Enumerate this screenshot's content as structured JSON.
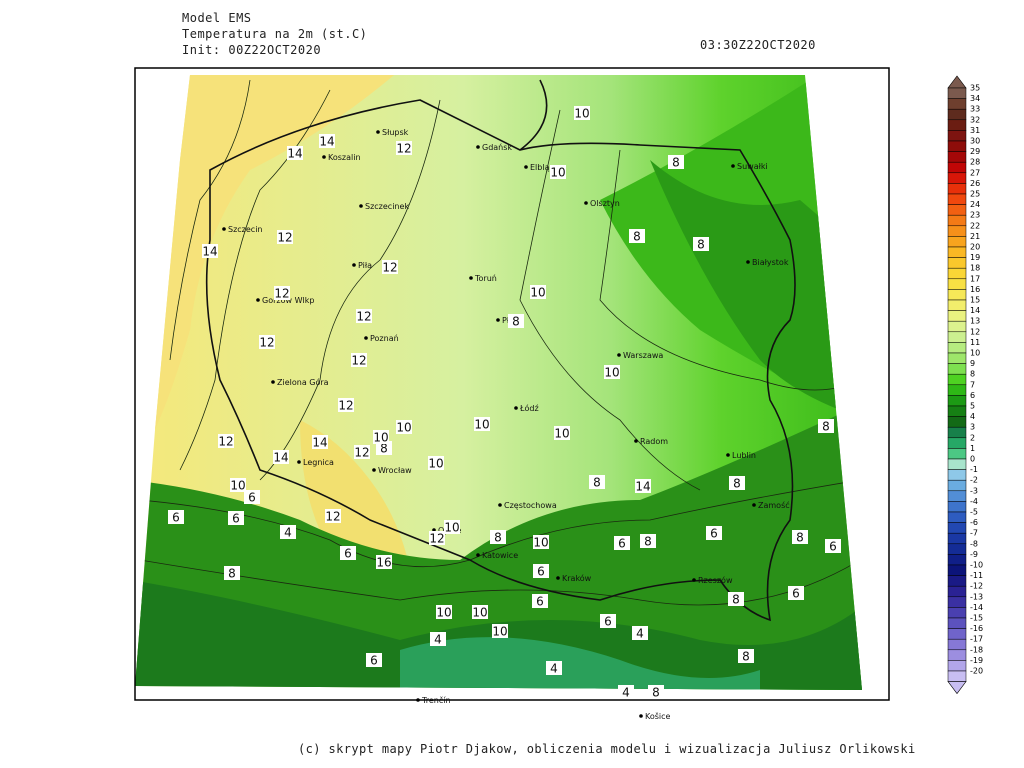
{
  "header": {
    "model": "Model EMS",
    "field": "Temperatura na 2m (st.C)",
    "init": "Init: 00Z22OCT2020",
    "valid": "03:30Z22OCT2020"
  },
  "cities": [
    "Słupsk",
    "Koszalin",
    "Gdańsk",
    "Elbląg",
    "Szczecin",
    "Szczecinek",
    "Olsztyn",
    "Suwałki",
    "Piła",
    "Toruń",
    "Białystok",
    "Gorzów Wlkp",
    "Poznań",
    "Płock",
    "Warszawa",
    "Zielona Góra",
    "Łódź",
    "Radom",
    "Lublin",
    "Legnica",
    "Wrocław",
    "Częstochowa",
    "Zamość",
    "Opole",
    "Katowice",
    "Kraków",
    "Rzeszów",
    "Trenčín",
    "Košice"
  ],
  "contour_labels": [
    14,
    14,
    12,
    12,
    10,
    10,
    8,
    14,
    12,
    12,
    10,
    8,
    8,
    8,
    12,
    12,
    10,
    12,
    12,
    10,
    12,
    10,
    10,
    8,
    14,
    14,
    12,
    10,
    10,
    10,
    8,
    10,
    8,
    6,
    6,
    4,
    12,
    14,
    10,
    12,
    16,
    8,
    6,
    6,
    8,
    6,
    8,
    8,
    6,
    8,
    6,
    6,
    6,
    10,
    10,
    10,
    6,
    4,
    6,
    4,
    4,
    4,
    8,
    10,
    8,
    8,
    6
  ],
  "colorbar": {
    "levels": [
      35,
      34,
      33,
      32,
      31,
      30,
      29,
      28,
      27,
      26,
      25,
      24,
      23,
      22,
      21,
      20,
      19,
      18,
      17,
      16,
      15,
      14,
      13,
      12,
      11,
      10,
      9,
      8,
      7,
      6,
      5,
      4,
      3,
      2,
      1,
      0,
      -1,
      -2,
      -3,
      -4,
      -5,
      -6,
      -7,
      -8,
      -9,
      -10,
      -11,
      -12,
      -13,
      -14,
      -15,
      -16,
      -17,
      -18,
      -19,
      -20
    ],
    "colors": [
      "#7b5a4e",
      "#6e3f2e",
      "#5e2b1e",
      "#6b1d12",
      "#7d1410",
      "#8e0d0a",
      "#a40808",
      "#c00606",
      "#d81608",
      "#e8300a",
      "#f0480e",
      "#f26012",
      "#f47a16",
      "#f6901a",
      "#f8a41e",
      "#fab824",
      "#fac82c",
      "#fad636",
      "#f8e044",
      "#f6e858",
      "#f2ee6c",
      "#eaf280",
      "#dcf28e",
      "#ccf090",
      "#b6ec80",
      "#9ee66a",
      "#7ee050",
      "#4ed222",
      "#2eb816",
      "#1c9a14",
      "#168014",
      "#136a16",
      "#17804a",
      "#26a866",
      "#4cc884",
      "#a8e4cc",
      "#8ec8e8",
      "#6aace0",
      "#528ed6",
      "#3e74cc",
      "#2e5cc0",
      "#2248b2",
      "#1a38a4",
      "#142c96",
      "#101f88",
      "#0c147a",
      "#1a1a86",
      "#2a2294",
      "#3a30a2",
      "#4a40b0",
      "#5c52be",
      "#7064ca",
      "#8678d6",
      "#9c8ee0",
      "#b2a6ea",
      "#c8bef2"
    ]
  },
  "footer": "(c) skrypt mapy Piotr Djakow, obliczenia modelu i wizualizacja Juliusz Orlikowski"
}
